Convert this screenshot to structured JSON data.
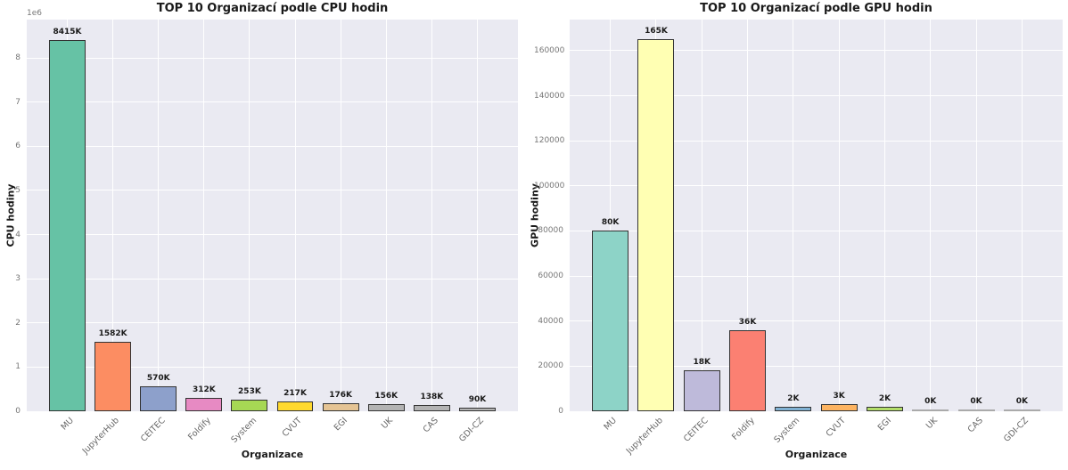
{
  "style": {
    "figure_bg": "#ffffff",
    "plot_bg": "#eaeaf2",
    "grid_color": "#ffffff",
    "tick_color": "#777777",
    "text_color": "#1a1a1a",
    "bar_edge_color": "#333333",
    "zero_bar_color": "#aaaaaa"
  },
  "chart_data": [
    {
      "type": "bar",
      "title": "TOP 10 Organizací podle CPU hodin",
      "xlabel": "Organizace",
      "ylabel": "CPU hodiny",
      "offset_text": "1e6",
      "grid": true,
      "legend": null,
      "categories": [
        "MU",
        "JupyterHub",
        "CEITEC",
        "Foldify",
        "System",
        "CVUT",
        "EGI",
        "UK",
        "CAS",
        "GDI-CZ"
      ],
      "values": [
        8415000,
        1582000,
        570000,
        312000,
        253000,
        217000,
        176000,
        156000,
        138000,
        90000
      ],
      "bar_labels": [
        "8415K",
        "1582K",
        "570K",
        "312K",
        "253K",
        "217K",
        "176K",
        "156K",
        "138K",
        "90K"
      ],
      "bar_colors": [
        "#66c2a5",
        "#fc8d62",
        "#8da0cb",
        "#e78ac3",
        "#a6d854",
        "#ffd92f",
        "#e5c494",
        "#b3b3b3",
        "#b3b3b3",
        "#b3b3b3"
      ],
      "xlim": [
        -0.89,
        9.89
      ],
      "ylim": [
        0,
        8870000
      ],
      "yticks": [
        0,
        1000000,
        2000000,
        3000000,
        4000000,
        5000000,
        6000000,
        7000000,
        8000000
      ],
      "ytick_labels": [
        "0",
        "1",
        "2",
        "3",
        "4",
        "5",
        "6",
        "7",
        "8"
      ]
    },
    {
      "type": "bar",
      "title": "TOP 10 Organizací podle GPU hodin",
      "xlabel": "Organizace",
      "ylabel": "GPU hodiny",
      "grid": true,
      "legend": null,
      "categories": [
        "MU",
        "JupyterHub",
        "CEITEC",
        "Foldify",
        "System",
        "CVUT",
        "EGI",
        "UK",
        "CAS",
        "GDI-CZ"
      ],
      "values": [
        80000,
        165000,
        18000,
        36000,
        2000,
        3000,
        2000,
        0,
        0,
        0
      ],
      "bar_labels": [
        "80K",
        "165K",
        "18K",
        "36K",
        "2K",
        "3K",
        "2K",
        "0K",
        "0K",
        "0K"
      ],
      "bar_colors": [
        "#8dd3c7",
        "#ffffb3",
        "#bebada",
        "#fb8072",
        "#80b1d3",
        "#fdb462",
        "#b3de69",
        "#aaaaaa",
        "#aaaaaa",
        "#aaaaaa"
      ],
      "xlim": [
        -0.89,
        9.89
      ],
      "ylim": [
        0,
        173800
      ],
      "yticks": [
        0,
        20000,
        40000,
        60000,
        80000,
        100000,
        120000,
        140000,
        160000
      ],
      "ytick_labels": [
        "0",
        "20000",
        "40000",
        "60000",
        "80000",
        "100000",
        "120000",
        "140000",
        "160000"
      ]
    }
  ]
}
